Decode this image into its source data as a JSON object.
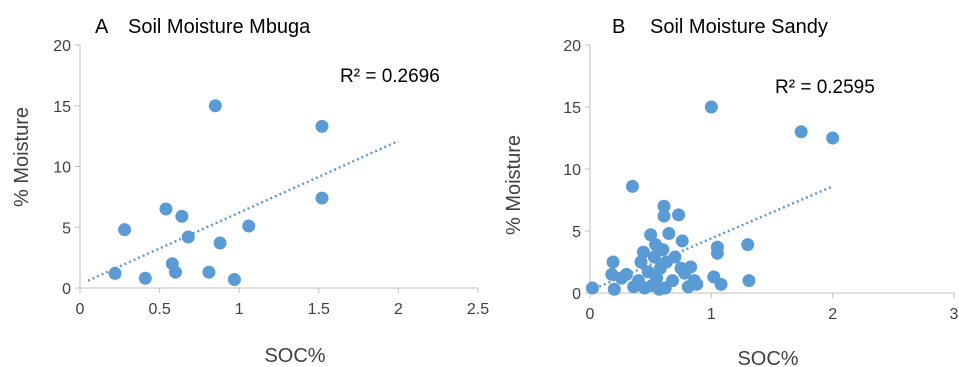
{
  "chart_data": [
    {
      "type": "scatter",
      "panel_letter": "A",
      "title": "Soil Moisture Mbuga",
      "xlabel": "SOC%",
      "ylabel": "% Moisture",
      "xlim": [
        0,
        2.5
      ],
      "ylim": [
        0,
        20
      ],
      "xticks": [
        "0",
        "0.5",
        "1",
        "1.5",
        "2",
        "2.5"
      ],
      "yticks": [
        "0",
        "5",
        "10",
        "15",
        "20"
      ],
      "r_squared": "R² = 0.2696",
      "marker_color": "#5b9bd5",
      "trendline": {
        "x": [
          0.05,
          2.0
        ],
        "y": [
          0.6,
          12.1
        ]
      },
      "points": [
        {
          "x": 0.22,
          "y": 1.2
        },
        {
          "x": 0.28,
          "y": 4.8
        },
        {
          "x": 0.41,
          "y": 0.8
        },
        {
          "x": 0.54,
          "y": 6.5
        },
        {
          "x": 0.58,
          "y": 2.0
        },
        {
          "x": 0.6,
          "y": 1.3
        },
        {
          "x": 0.64,
          "y": 5.9
        },
        {
          "x": 0.68,
          "y": 4.2
        },
        {
          "x": 0.81,
          "y": 1.3
        },
        {
          "x": 0.85,
          "y": 15.0
        },
        {
          "x": 0.88,
          "y": 3.7
        },
        {
          "x": 0.97,
          "y": 0.7
        },
        {
          "x": 1.06,
          "y": 5.1
        },
        {
          "x": 1.52,
          "y": 13.3
        },
        {
          "x": 1.52,
          "y": 7.4
        }
      ]
    },
    {
      "type": "scatter",
      "panel_letter": "B",
      "title": "Soil Moisture Sandy",
      "xlabel": "SOC%",
      "ylabel": "% Moisture",
      "xlim": [
        0,
        3
      ],
      "ylim": [
        0,
        20
      ],
      "xticks": [
        "0",
        "1",
        "2",
        "3"
      ],
      "yticks": [
        "0",
        "5",
        "10",
        "15",
        "20"
      ],
      "r_squared": "R² = 0.2595",
      "marker_color": "#5b9bd5",
      "trendline": {
        "x": [
          0.0,
          2.0
        ],
        "y": [
          0.2,
          8.6
        ]
      },
      "points": [
        {
          "x": 0.02,
          "y": 0.4
        },
        {
          "x": 0.18,
          "y": 1.5
        },
        {
          "x": 0.19,
          "y": 2.5
        },
        {
          "x": 0.2,
          "y": 0.3
        },
        {
          "x": 0.26,
          "y": 1.2
        },
        {
          "x": 0.3,
          "y": 1.5
        },
        {
          "x": 0.35,
          "y": 8.6
        },
        {
          "x": 0.36,
          "y": 0.5
        },
        {
          "x": 0.4,
          "y": 1.0
        },
        {
          "x": 0.42,
          "y": 2.5
        },
        {
          "x": 0.44,
          "y": 3.3
        },
        {
          "x": 0.45,
          "y": 0.4
        },
        {
          "x": 0.48,
          "y": 1.7
        },
        {
          "x": 0.5,
          "y": 4.7
        },
        {
          "x": 0.51,
          "y": 0.6
        },
        {
          "x": 0.53,
          "y": 2.9
        },
        {
          "x": 0.54,
          "y": 3.9
        },
        {
          "x": 0.55,
          "y": 1.2
        },
        {
          "x": 0.57,
          "y": 0.3
        },
        {
          "x": 0.58,
          "y": 2.0
        },
        {
          "x": 0.6,
          "y": 3.5
        },
        {
          "x": 0.61,
          "y": 7.0
        },
        {
          "x": 0.61,
          "y": 6.2
        },
        {
          "x": 0.62,
          "y": 0.4
        },
        {
          "x": 0.63,
          "y": 2.5
        },
        {
          "x": 0.65,
          "y": 4.8
        },
        {
          "x": 0.68,
          "y": 1.0
        },
        {
          "x": 0.7,
          "y": 2.9
        },
        {
          "x": 0.73,
          "y": 6.3
        },
        {
          "x": 0.75,
          "y": 2.0
        },
        {
          "x": 0.76,
          "y": 4.2
        },
        {
          "x": 0.78,
          "y": 1.6
        },
        {
          "x": 0.81,
          "y": 0.5
        },
        {
          "x": 0.83,
          "y": 2.1
        },
        {
          "x": 0.86,
          "y": 1.0
        },
        {
          "x": 0.88,
          "y": 0.7
        },
        {
          "x": 1.0,
          "y": 15.0
        },
        {
          "x": 1.02,
          "y": 1.3
        },
        {
          "x": 1.05,
          "y": 3.7
        },
        {
          "x": 1.05,
          "y": 3.2
        },
        {
          "x": 1.08,
          "y": 0.7
        },
        {
          "x": 1.3,
          "y": 3.9
        },
        {
          "x": 1.31,
          "y": 1.0
        },
        {
          "x": 1.74,
          "y": 13.0
        },
        {
          "x": 2.0,
          "y": 12.5
        }
      ]
    }
  ]
}
